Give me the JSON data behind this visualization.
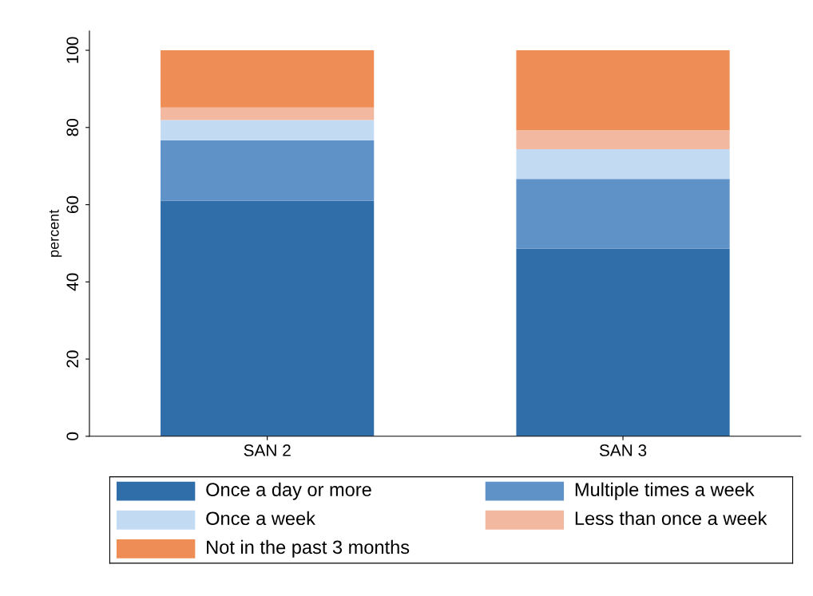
{
  "chart_data": {
    "type": "bar",
    "stacked": true,
    "ylabel": "percent",
    "categories": [
      "SAN 2",
      "SAN 3"
    ],
    "series": [
      {
        "name": "Once a day or more",
        "color": "#2f6ea8",
        "values": [
          61.0,
          48.6
        ]
      },
      {
        "name": "Multiple times a week",
        "color": "#5f93c8",
        "values": [
          15.7,
          18.1
        ]
      },
      {
        "name": "Once a week",
        "color": "#c3dbf2",
        "values": [
          5.2,
          7.7
        ]
      },
      {
        "name": "Less than once a week",
        "color": "#f2b9a0",
        "values": [
          3.3,
          4.9
        ]
      },
      {
        "name": "Not in the past 3 months",
        "color": "#ef8d57",
        "values": [
          14.8,
          20.7
        ]
      }
    ],
    "ylim": [
      0,
      105
    ],
    "yticks": [
      0,
      20,
      40,
      60,
      80,
      100
    ],
    "grid": false,
    "legend": "bottom"
  }
}
